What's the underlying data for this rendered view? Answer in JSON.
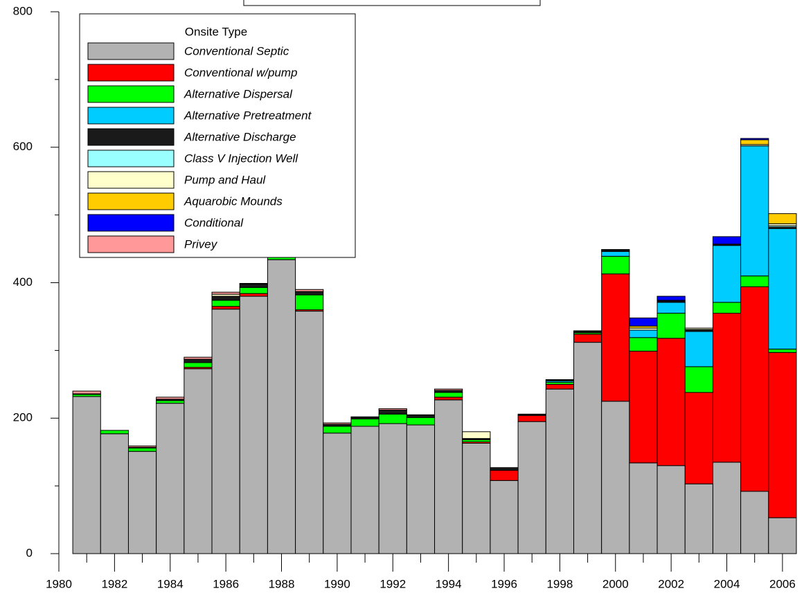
{
  "chart_data": {
    "type": "stacked-bar",
    "legend_title": "Onsite Type",
    "x": [
      1981,
      1982,
      1983,
      1984,
      1985,
      1986,
      1987,
      1988,
      1989,
      1990,
      1991,
      1992,
      1993,
      1994,
      1995,
      1996,
      1997,
      1998,
      1999,
      2000,
      2001,
      2002,
      2003,
      2004,
      2005,
      2006
    ],
    "series": [
      {
        "name": "Conventional Septic",
        "color": "#b2b2b2",
        "values": [
          232,
          177,
          151,
          222,
          273,
          361,
          380,
          434,
          358,
          178,
          188,
          192,
          190,
          227,
          163,
          108,
          195,
          243,
          312,
          225,
          134,
          130,
          103,
          135,
          92,
          53
        ]
      },
      {
        "name": "Conventional w/pump",
        "color": "#ff0000",
        "values": [
          0,
          0,
          0,
          0,
          2,
          4,
          4,
          0,
          2,
          0,
          0,
          0,
          0,
          4,
          2,
          15,
          9,
          7,
          12,
          188,
          165,
          188,
          135,
          220,
          302,
          244
        ]
      },
      {
        "name": "Alternative Dispersal",
        "color": "#00ff00",
        "values": [
          3,
          5,
          5,
          4,
          7,
          9,
          9,
          21,
          22,
          10,
          11,
          14,
          11,
          7,
          3,
          0,
          0,
          3,
          2,
          26,
          20,
          37,
          38,
          16,
          16,
          5
        ]
      },
      {
        "name": "Alternative Pretreatment",
        "color": "#00ccff",
        "values": [
          0,
          0,
          0,
          0,
          0,
          0,
          0,
          0,
          0,
          0,
          0,
          0,
          0,
          0,
          0,
          0,
          0,
          2,
          0,
          7,
          11,
          16,
          52,
          84,
          192,
          178
        ]
      },
      {
        "name": "Alternative Discharge",
        "color": "#1a1a1a",
        "values": [
          1,
          0,
          1,
          2,
          5,
          6,
          5,
          2,
          5,
          3,
          3,
          6,
          3,
          3,
          2,
          4,
          2,
          2,
          2,
          2,
          0,
          2,
          3,
          2,
          0,
          2
        ]
      },
      {
        "name": "Class V Injection Well",
        "color": "#99ffff",
        "values": [
          0,
          0,
          0,
          0,
          0,
          0,
          0,
          0,
          0,
          0,
          0,
          0,
          0,
          0,
          0,
          0,
          0,
          0,
          0,
          1,
          0,
          1,
          0,
          0,
          0,
          2
        ]
      },
      {
        "name": "Pump and Haul",
        "color": "#ffffcc",
        "values": [
          0,
          0,
          0,
          0,
          0,
          3,
          0,
          0,
          0,
          0,
          0,
          0,
          0,
          0,
          10,
          0,
          0,
          0,
          0,
          0,
          3,
          0,
          2,
          0,
          2,
          3
        ]
      },
      {
        "name": "Aquarobic Mounds",
        "color": "#ffcc00",
        "values": [
          0,
          0,
          0,
          0,
          0,
          0,
          0,
          0,
          0,
          0,
          0,
          0,
          0,
          0,
          0,
          0,
          0,
          0,
          0,
          0,
          3,
          0,
          0,
          0,
          7,
          15
        ]
      },
      {
        "name": "Conditional",
        "color": "#0000ff",
        "values": [
          0,
          0,
          0,
          0,
          0,
          0,
          0,
          0,
          0,
          0,
          0,
          0,
          0,
          0,
          0,
          0,
          0,
          0,
          0,
          0,
          12,
          6,
          0,
          11,
          2,
          0
        ]
      },
      {
        "name": "Privey",
        "color": "#ff9999",
        "values": [
          4,
          0,
          2,
          3,
          3,
          3,
          1,
          3,
          3,
          2,
          0,
          2,
          1,
          2,
          0,
          0,
          0,
          0,
          1,
          0,
          0,
          0,
          0,
          0,
          0,
          0
        ]
      }
    ],
    "xlim": [
      1980,
      2006.5
    ],
    "xticks": [
      1980,
      1982,
      1984,
      1986,
      1988,
      1990,
      1992,
      1994,
      1996,
      1998,
      2000,
      2002,
      2004,
      2006
    ],
    "xticks_minor": [
      1981,
      1983,
      1985,
      1987,
      1989,
      1991,
      1993,
      1995,
      1997,
      1999,
      2001,
      2003,
      2005
    ],
    "ylim": [
      0,
      800
    ],
    "yticks": [
      0,
      200,
      400,
      600,
      800
    ],
    "yticks_minor": [
      100,
      300,
      500,
      700
    ]
  }
}
